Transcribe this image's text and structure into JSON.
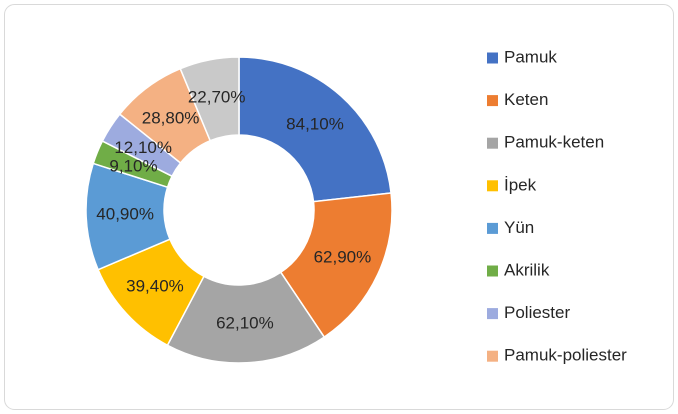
{
  "chart_data": {
    "type": "donut",
    "categories": [
      "Pamuk",
      "Keten",
      "Pamuk-keten",
      "İpek",
      "Yün",
      "Akrilik",
      "Poliester",
      "Pamuk-poliester",
      null
    ],
    "values": [
      84.1,
      62.9,
      62.1,
      39.4,
      40.9,
      9.1,
      12.1,
      28.8,
      22.7
    ],
    "value_labels": [
      "84,10%",
      "62,90%",
      "62,10%",
      "39,40%",
      "40,90%",
      "9,10%",
      "12,10%",
      "28,80%",
      "22,70%"
    ],
    "colors": [
      "#4472c4",
      "#ed7d31",
      "#a5a5a5",
      "#ffc000",
      "#5b9bd5",
      "#70ad47",
      "#9dabdf",
      "#f4b183",
      "#c9c9c9"
    ],
    "legend": "right"
  }
}
